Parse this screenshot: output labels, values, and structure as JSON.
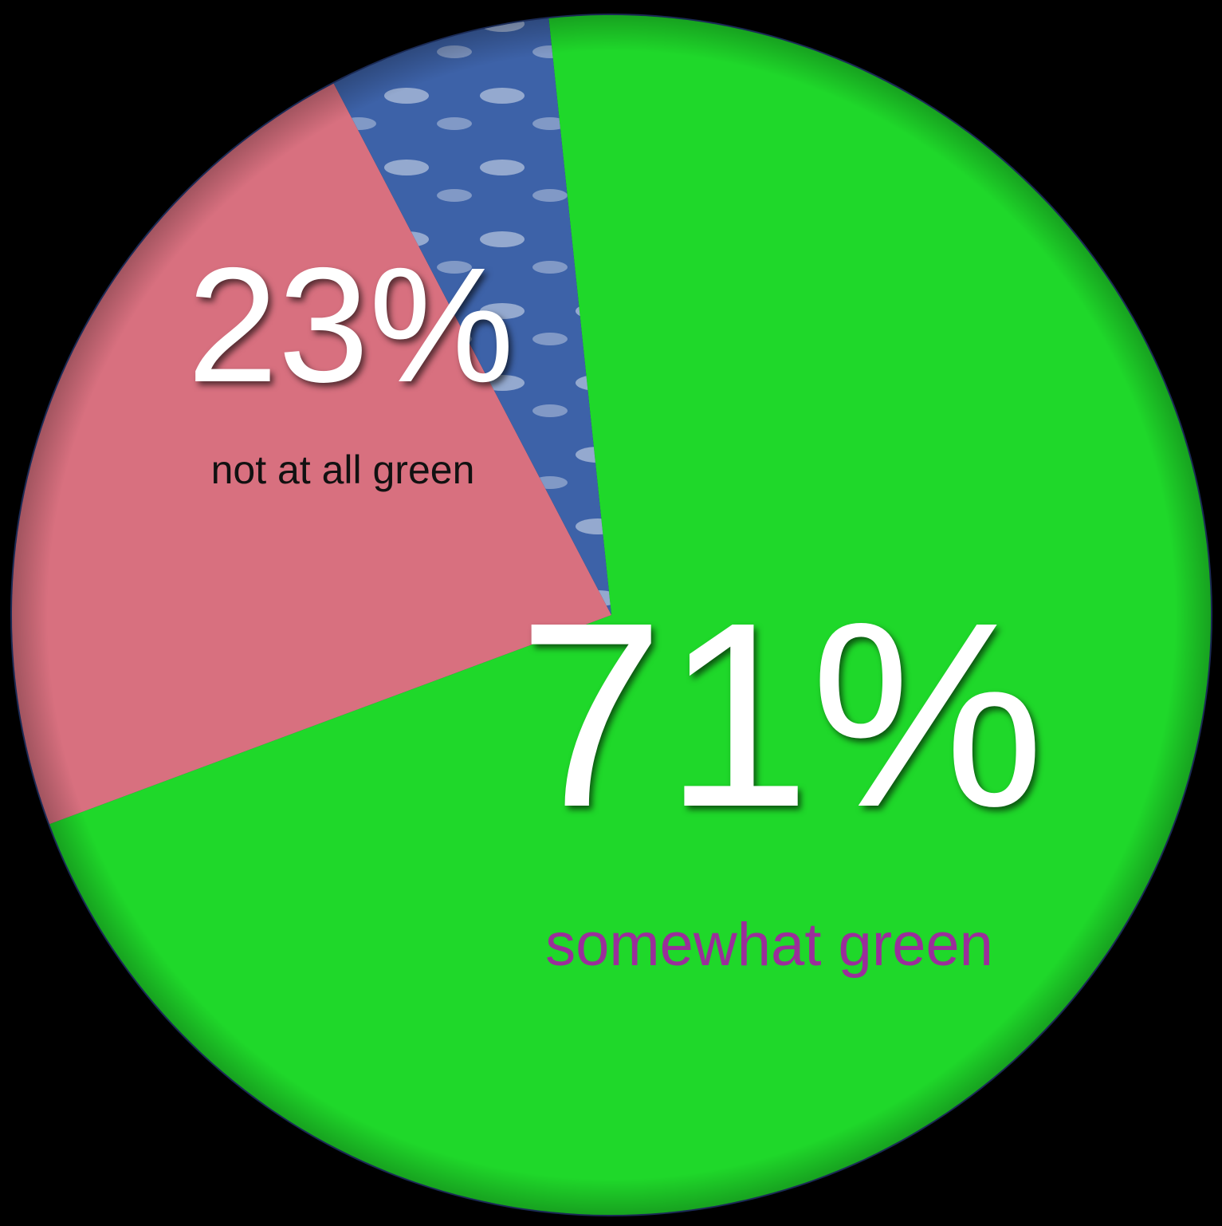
{
  "chart_data": {
    "type": "pie",
    "categories": [
      "somewhat green",
      "not at all green",
      null
    ],
    "values": [
      71,
      23,
      6
    ],
    "value_labels": [
      "71%",
      "23%",
      null
    ],
    "colors": [
      "#1fd82a",
      "#d8707f",
      "#3d62a8"
    ],
    "label_colors": [
      "#9a2e9a",
      "#111111",
      null
    ]
  }
}
